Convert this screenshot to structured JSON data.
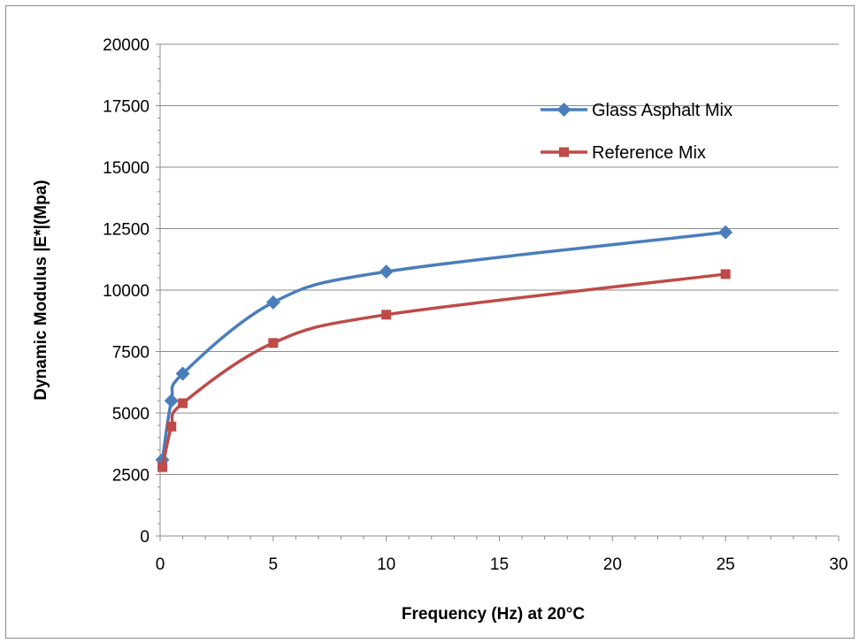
{
  "chart_data": {
    "type": "line",
    "xlabel": "Frequency (Hz) at 20°C",
    "ylabel": "Dynamic Modulus |E*|(Mpa)",
    "xlim": [
      0,
      30
    ],
    "ylim": [
      0,
      20000
    ],
    "x_ticks": [
      "0",
      "5",
      "10",
      "15",
      "20",
      "25",
      "30"
    ],
    "y_ticks": [
      "0",
      "2500",
      "5000",
      "7500",
      "10000",
      "12500",
      "15000",
      "17500",
      "20000"
    ],
    "grid": "horizontal",
    "legend_position": "top-right",
    "series": [
      {
        "name": "Glass Asphalt Mix",
        "color": "#4a7ebb",
        "marker": "diamond",
        "x": [
          0.1,
          0.5,
          1,
          5,
          10,
          25
        ],
        "y": [
          3100,
          5500,
          6600,
          9500,
          10750,
          12350
        ]
      },
      {
        "name": "Reference Mix",
        "color": "#be4b48",
        "marker": "square",
        "x": [
          0.1,
          0.5,
          1,
          5,
          10,
          25
        ],
        "y": [
          2800,
          4450,
          5400,
          7850,
          9000,
          10650
        ]
      }
    ]
  }
}
